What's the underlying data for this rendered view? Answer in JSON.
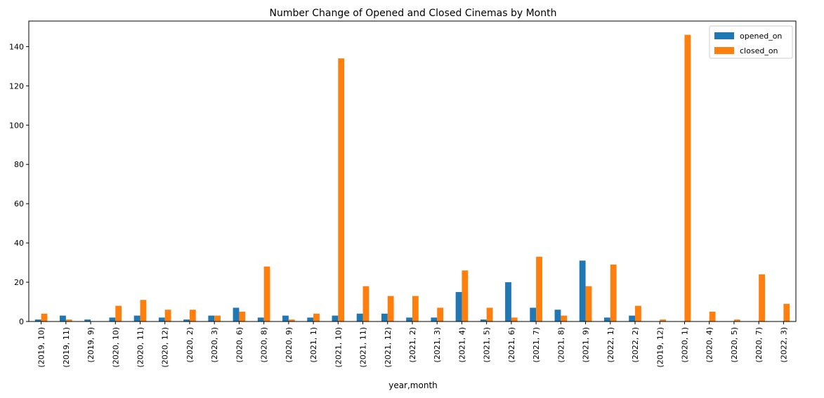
{
  "chart_data": {
    "type": "bar",
    "title": "Number Change of Opened and Closed Cinemas by Month",
    "xlabel": "year,month",
    "ylabel": "",
    "ylim": [
      0,
      153
    ],
    "yticks": [
      0,
      20,
      40,
      60,
      80,
      100,
      120,
      140
    ],
    "legend": "top-right",
    "grid": false,
    "categories": [
      "(2019, 10)",
      "(2019, 11)",
      "(2019, 9)",
      "(2020, 10)",
      "(2020, 11)",
      "(2020, 12)",
      "(2020, 2)",
      "(2020, 3)",
      "(2020, 6)",
      "(2020, 8)",
      "(2020, 9)",
      "(2021, 1)",
      "(2021, 10)",
      "(2021, 11)",
      "(2021, 12)",
      "(2021, 2)",
      "(2021, 3)",
      "(2021, 4)",
      "(2021, 5)",
      "(2021, 6)",
      "(2021, 7)",
      "(2021, 8)",
      "(2021, 9)",
      "(2022, 1)",
      "(2022, 2)",
      "(2019, 12)",
      "(2020, 1)",
      "(2020, 4)",
      "(2020, 5)",
      "(2020, 7)",
      "(2022, 3)"
    ],
    "series": [
      {
        "name": "opened_on",
        "color": "#1f77b4",
        "values": [
          1,
          3,
          1,
          2,
          3,
          2,
          1,
          3,
          7,
          2,
          3,
          2,
          3,
          4,
          4,
          2,
          2,
          15,
          1,
          20,
          7,
          6,
          31,
          2,
          3,
          0,
          0,
          0,
          0,
          0,
          0
        ]
      },
      {
        "name": "closed_on",
        "color": "#ff7f0e",
        "values": [
          4,
          1,
          0,
          8,
          11,
          6,
          6,
          3,
          5,
          28,
          1,
          4,
          134,
          18,
          13,
          13,
          7,
          26,
          7,
          2,
          33,
          3,
          18,
          29,
          8,
          1,
          146,
          5,
          1,
          24,
          9
        ]
      }
    ]
  }
}
